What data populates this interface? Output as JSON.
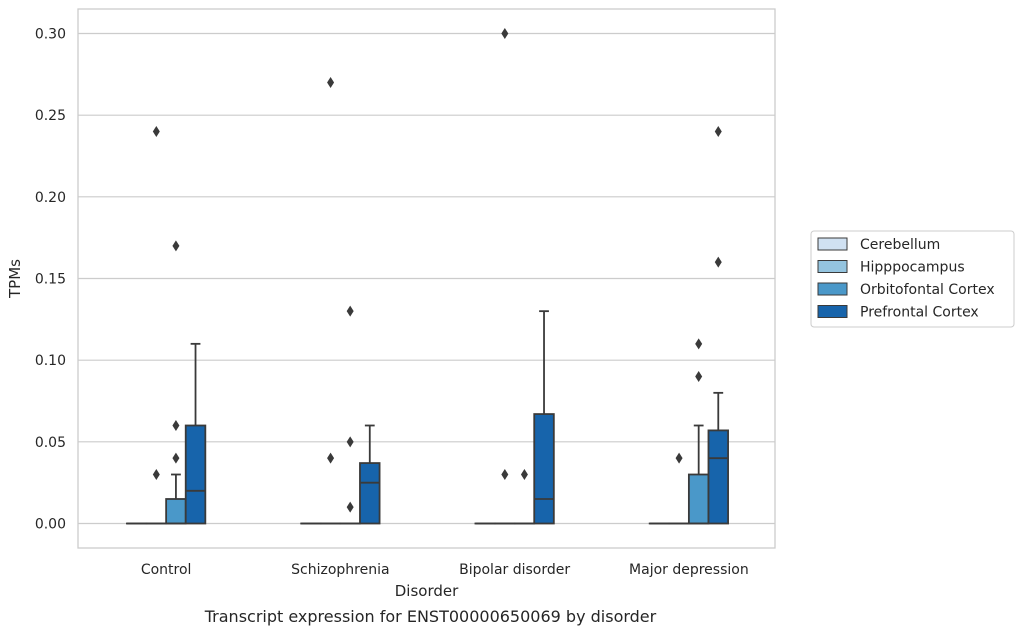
{
  "chart_data": {
    "type": "box",
    "caption": "Transcript expression for ENST00000650069 by disorder",
    "xlabel": "Disorder",
    "ylabel": "TPMs",
    "ylim": [
      -0.015,
      0.315
    ],
    "yticks": [
      0.0,
      0.05,
      0.1,
      0.15,
      0.2,
      0.25,
      0.3
    ],
    "ytick_labels": [
      "0.00",
      "0.05",
      "0.10",
      "0.15",
      "0.20",
      "0.25",
      "0.30"
    ],
    "grid": "horizontal",
    "legend_position": "right",
    "categories": [
      "Control",
      "Schizophrenia",
      "Bipolar disorder",
      "Major depression"
    ],
    "series": [
      {
        "name": "Cerebellum",
        "color": "#d0e1f2",
        "boxes": [
          {
            "category": "Control",
            "whisker_low": 0,
            "q1": 0,
            "median": 0,
            "q3": 0,
            "whisker_high": 0,
            "outliers": []
          },
          {
            "category": "Schizophrenia",
            "whisker_low": 0,
            "q1": 0,
            "median": 0,
            "q3": 0,
            "whisker_high": 0,
            "outliers": []
          },
          {
            "category": "Bipolar disorder",
            "whisker_low": 0,
            "q1": 0,
            "median": 0,
            "q3": 0,
            "whisker_high": 0,
            "outliers": []
          },
          {
            "category": "Major depression",
            "whisker_low": 0,
            "q1": 0,
            "median": 0,
            "q3": 0,
            "whisker_high": 0,
            "outliers": []
          }
        ]
      },
      {
        "name": "Hipppocampus",
        "color": "#94c4df",
        "boxes": [
          {
            "category": "Control",
            "whisker_low": 0,
            "q1": 0,
            "median": 0,
            "q3": 0,
            "whisker_high": 0,
            "outliers": [
              0.03,
              0.24
            ]
          },
          {
            "category": "Schizophrenia",
            "whisker_low": 0,
            "q1": 0,
            "median": 0,
            "q3": 0,
            "whisker_high": 0,
            "outliers": [
              0.04,
              0.27
            ]
          },
          {
            "category": "Bipolar disorder",
            "whisker_low": 0,
            "q1": 0,
            "median": 0,
            "q3": 0,
            "whisker_high": 0,
            "outliers": [
              0.03,
              0.3
            ]
          },
          {
            "category": "Major depression",
            "whisker_low": 0,
            "q1": 0,
            "median": 0,
            "q3": 0,
            "whisker_high": 0,
            "outliers": [
              0.04
            ]
          }
        ]
      },
      {
        "name": "Orbitofontal Cortex",
        "color": "#4a98c9",
        "boxes": [
          {
            "category": "Control",
            "whisker_low": 0,
            "q1": 0,
            "median": 0,
            "q3": 0.015,
            "whisker_high": 0.03,
            "outliers": [
              0.04,
              0.06,
              0.17
            ]
          },
          {
            "category": "Schizophrenia",
            "whisker_low": 0,
            "q1": 0,
            "median": 0,
            "q3": 0,
            "whisker_high": 0,
            "outliers": [
              0.01,
              0.05,
              0.13
            ]
          },
          {
            "category": "Bipolar disorder",
            "whisker_low": 0,
            "q1": 0,
            "median": 0,
            "q3": 0,
            "whisker_high": 0,
            "outliers": [
              0.03
            ]
          },
          {
            "category": "Major depression",
            "whisker_low": 0,
            "q1": 0,
            "median": 0,
            "q3": 0.03,
            "whisker_high": 0.06,
            "outliers": [
              0.09,
              0.11
            ]
          }
        ]
      },
      {
        "name": "Prefrontal Cortex",
        "color": "#1764ab",
        "boxes": [
          {
            "category": "Control",
            "whisker_low": 0,
            "q1": 0,
            "median": 0.02,
            "q3": 0.06,
            "whisker_high": 0.11,
            "outliers": []
          },
          {
            "category": "Schizophrenia",
            "whisker_low": 0,
            "q1": 0,
            "median": 0.025,
            "q3": 0.037,
            "whisker_high": 0.06,
            "outliers": []
          },
          {
            "category": "Bipolar disorder",
            "whisker_low": 0,
            "q1": 0,
            "median": 0.015,
            "q3": 0.067,
            "whisker_high": 0.13,
            "outliers": []
          },
          {
            "category": "Major depression",
            "whisker_low": 0,
            "q1": 0,
            "median": 0.04,
            "q3": 0.057,
            "whisker_high": 0.08,
            "outliers": [
              0.16,
              0.24
            ]
          }
        ]
      }
    ]
  }
}
